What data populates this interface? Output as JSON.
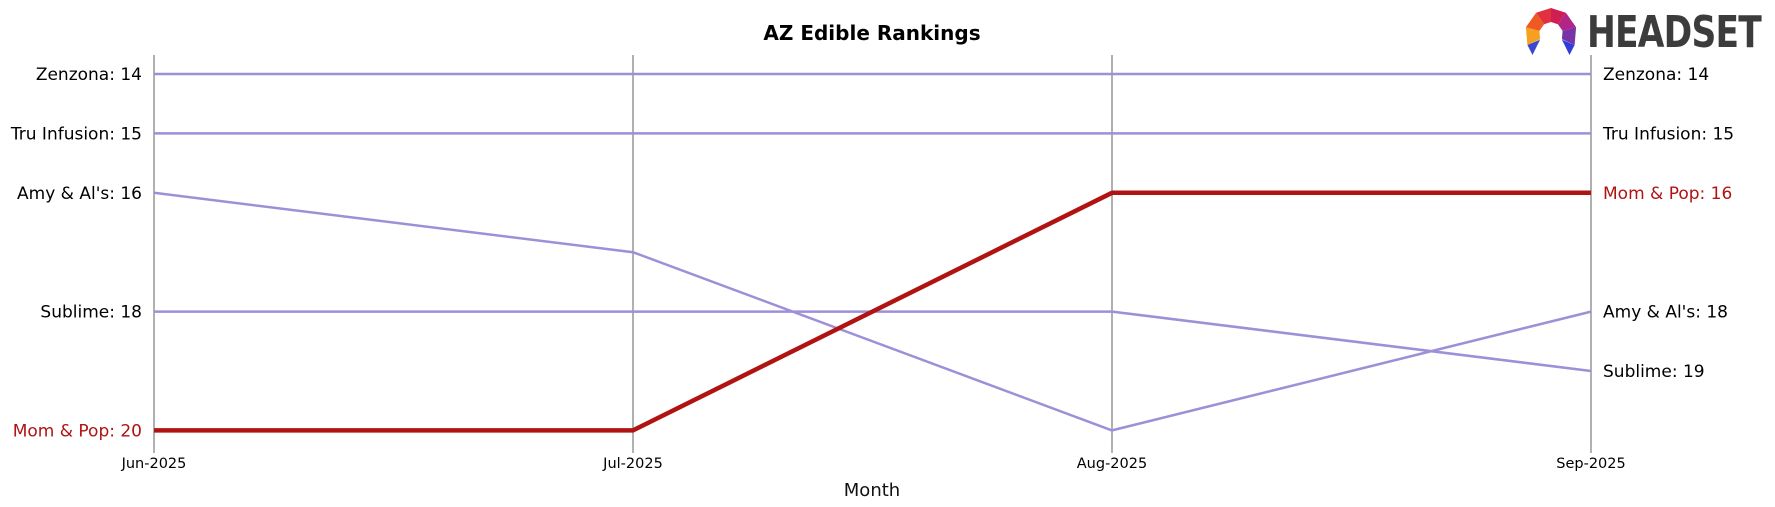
{
  "header": {
    "logo_text": "HEADSET"
  },
  "chart_data": {
    "type": "line",
    "variant": "bump-ranking",
    "title": "AZ Edible Rankings",
    "xlabel": "Month",
    "x_categories": [
      "Jun-2025",
      "Jul-2025",
      "Aug-2025",
      "Sep-2025"
    ],
    "y_axis": {
      "unit": "rank",
      "best": 14,
      "worst": 20,
      "inverted": true
    },
    "grid": {
      "vertical": true,
      "horizontal": false
    },
    "legend": "inline-edge-labels",
    "colors": {
      "default_line": "#9e8fd8",
      "highlight_line": "#b11212",
      "gridline": "#b0b0b0",
      "tick": "#808080",
      "text": "#000000"
    },
    "series": [
      {
        "name": "Zenzona",
        "values": [
          14,
          14,
          14,
          14
        ],
        "highlight": false
      },
      {
        "name": "Tru Infusion",
        "values": [
          15,
          15,
          15,
          15
        ],
        "highlight": false
      },
      {
        "name": "Amy & Al's",
        "values": [
          16,
          17,
          20,
          18
        ],
        "highlight": false
      },
      {
        "name": "Sublime",
        "values": [
          18,
          18,
          18,
          19
        ],
        "highlight": false
      },
      {
        "name": "Mom & Pop",
        "values": [
          20,
          20,
          16,
          16
        ],
        "highlight": true
      }
    ],
    "edge_labels": {
      "left": [
        "Zenzona: 14",
        "Tru Infusion: 15",
        "Amy & Al's: 16",
        "Sublime: 18",
        "Mom & Pop: 20"
      ],
      "right": [
        "Zenzona: 14",
        "Tru Infusion: 15",
        "Mom & Pop: 16",
        "Amy & Al's: 18",
        "Sublime: 19"
      ]
    }
  }
}
